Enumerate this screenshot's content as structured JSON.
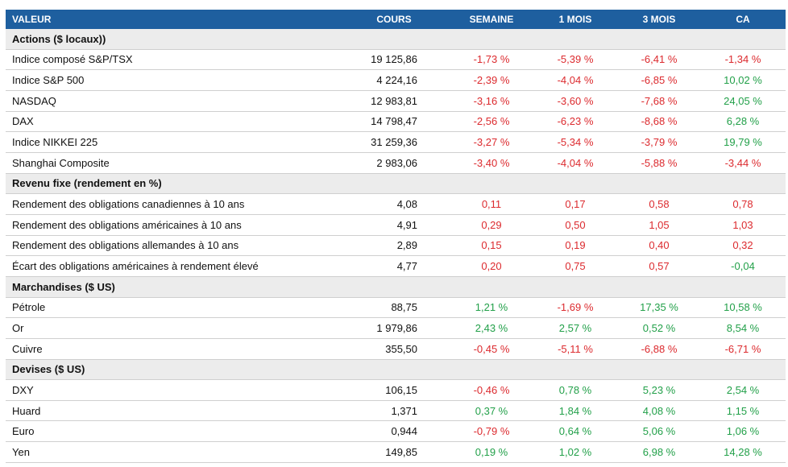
{
  "header": [
    "VALEUR",
    "COURS",
    "SEMAINE",
    "1 MOIS",
    "3 MOIS",
    "CA"
  ],
  "palette": {
    "up": "#22a049",
    "down": "#dc2a2e"
  },
  "sections": [
    {
      "title": "Actions ($ locaux))",
      "rows": [
        {
          "cells": [
            "Indice composé S&P/TSX",
            "19 125,86",
            "-1,73 %",
            "-5,39 %",
            "-6,41 %",
            "-1,34 %"
          ],
          "tones": [
            "down",
            "down",
            "down",
            "down"
          ]
        },
        {
          "cells": [
            "Indice S&P 500",
            "4 224,16",
            "-2,39 %",
            "-4,04 %",
            "-6,85 %",
            "10,02 %"
          ],
          "tones": [
            "down",
            "down",
            "down",
            "up"
          ]
        },
        {
          "cells": [
            "NASDAQ",
            "12 983,81",
            "-3,16 %",
            "-3,60 %",
            "-7,68 %",
            "24,05 %"
          ],
          "tones": [
            "down",
            "down",
            "down",
            "up"
          ]
        },
        {
          "cells": [
            "DAX",
            "14 798,47",
            "-2,56 %",
            "-6,23 %",
            "-8,68 %",
            "6,28 %"
          ],
          "tones": [
            "down",
            "down",
            "down",
            "up"
          ]
        },
        {
          "cells": [
            "Indice NIKKEI 225",
            "31 259,36",
            "-3,27 %",
            "-5,34 %",
            "-3,79 %",
            "19,79 %"
          ],
          "tones": [
            "down",
            "down",
            "down",
            "up"
          ]
        },
        {
          "cells": [
            "Shanghai Composite",
            "2 983,06",
            "-3,40 %",
            "-4,04 %",
            "-5,88 %",
            "-3,44 %"
          ],
          "tones": [
            "down",
            "down",
            "down",
            "down"
          ]
        }
      ]
    },
    {
      "title": "Revenu fixe (rendement en %)",
      "rows": [
        {
          "cells": [
            "Rendement des obligations canadiennes à 10 ans",
            "4,08",
            "0,11",
            "0,17",
            "0,58",
            "0,78"
          ],
          "tones": [
            "down",
            "down",
            "down",
            "down"
          ]
        },
        {
          "cells": [
            "Rendement des obligations américaines à 10 ans",
            "4,91",
            "0,29",
            "0,50",
            "1,05",
            "1,03"
          ],
          "tones": [
            "down",
            "down",
            "down",
            "down"
          ]
        },
        {
          "cells": [
            "Rendement des obligations allemandes à 10 ans",
            "2,89",
            "0,15",
            "0,19",
            "0,40",
            "0,32"
          ],
          "tones": [
            "down",
            "down",
            "down",
            "down"
          ]
        },
        {
          "cells": [
            "Écart des obligations américaines à rendement élevé",
            "4,77",
            "0,20",
            "0,75",
            "0,57",
            "-0,04"
          ],
          "tones": [
            "down",
            "down",
            "down",
            "up"
          ]
        }
      ]
    },
    {
      "title": "Marchandises ($ US)",
      "rows": [
        {
          "cells": [
            "Pétrole",
            "88,75",
            "1,21 %",
            "-1,69 %",
            "17,35 %",
            "10,58 %"
          ],
          "tones": [
            "up",
            "down",
            "up",
            "up"
          ]
        },
        {
          "cells": [
            "Or",
            "1 979,86",
            "2,43 %",
            "2,57 %",
            "0,52 %",
            "8,54 %"
          ],
          "tones": [
            "up",
            "up",
            "up",
            "up"
          ]
        },
        {
          "cells": [
            "Cuivre",
            "355,50",
            "-0,45 %",
            "-5,11 %",
            "-6,88 %",
            "-6,71 %"
          ],
          "tones": [
            "down",
            "down",
            "down",
            "down"
          ]
        }
      ]
    },
    {
      "title": "Devises ($ US)",
      "rows": [
        {
          "cells": [
            "DXY",
            "106,15",
            "-0,46 %",
            "0,78 %",
            "5,23 %",
            "2,54 %"
          ],
          "tones": [
            "down",
            "up",
            "up",
            "up"
          ]
        },
        {
          "cells": [
            "Huard",
            "1,371",
            "0,37 %",
            "1,84 %",
            "4,08 %",
            "1,15 %"
          ],
          "tones": [
            "up",
            "up",
            "up",
            "up"
          ]
        },
        {
          "cells": [
            "Euro",
            "0,944",
            "-0,79 %",
            "0,64 %",
            "5,06 %",
            "1,06 %"
          ],
          "tones": [
            "down",
            "up",
            "up",
            "up"
          ]
        },
        {
          "cells": [
            "Yen",
            "149,85",
            "0,19 %",
            "1,02 %",
            "6,98 %",
            "14,28 %"
          ],
          "tones": [
            "up",
            "up",
            "up",
            "up"
          ]
        }
      ]
    }
  ]
}
